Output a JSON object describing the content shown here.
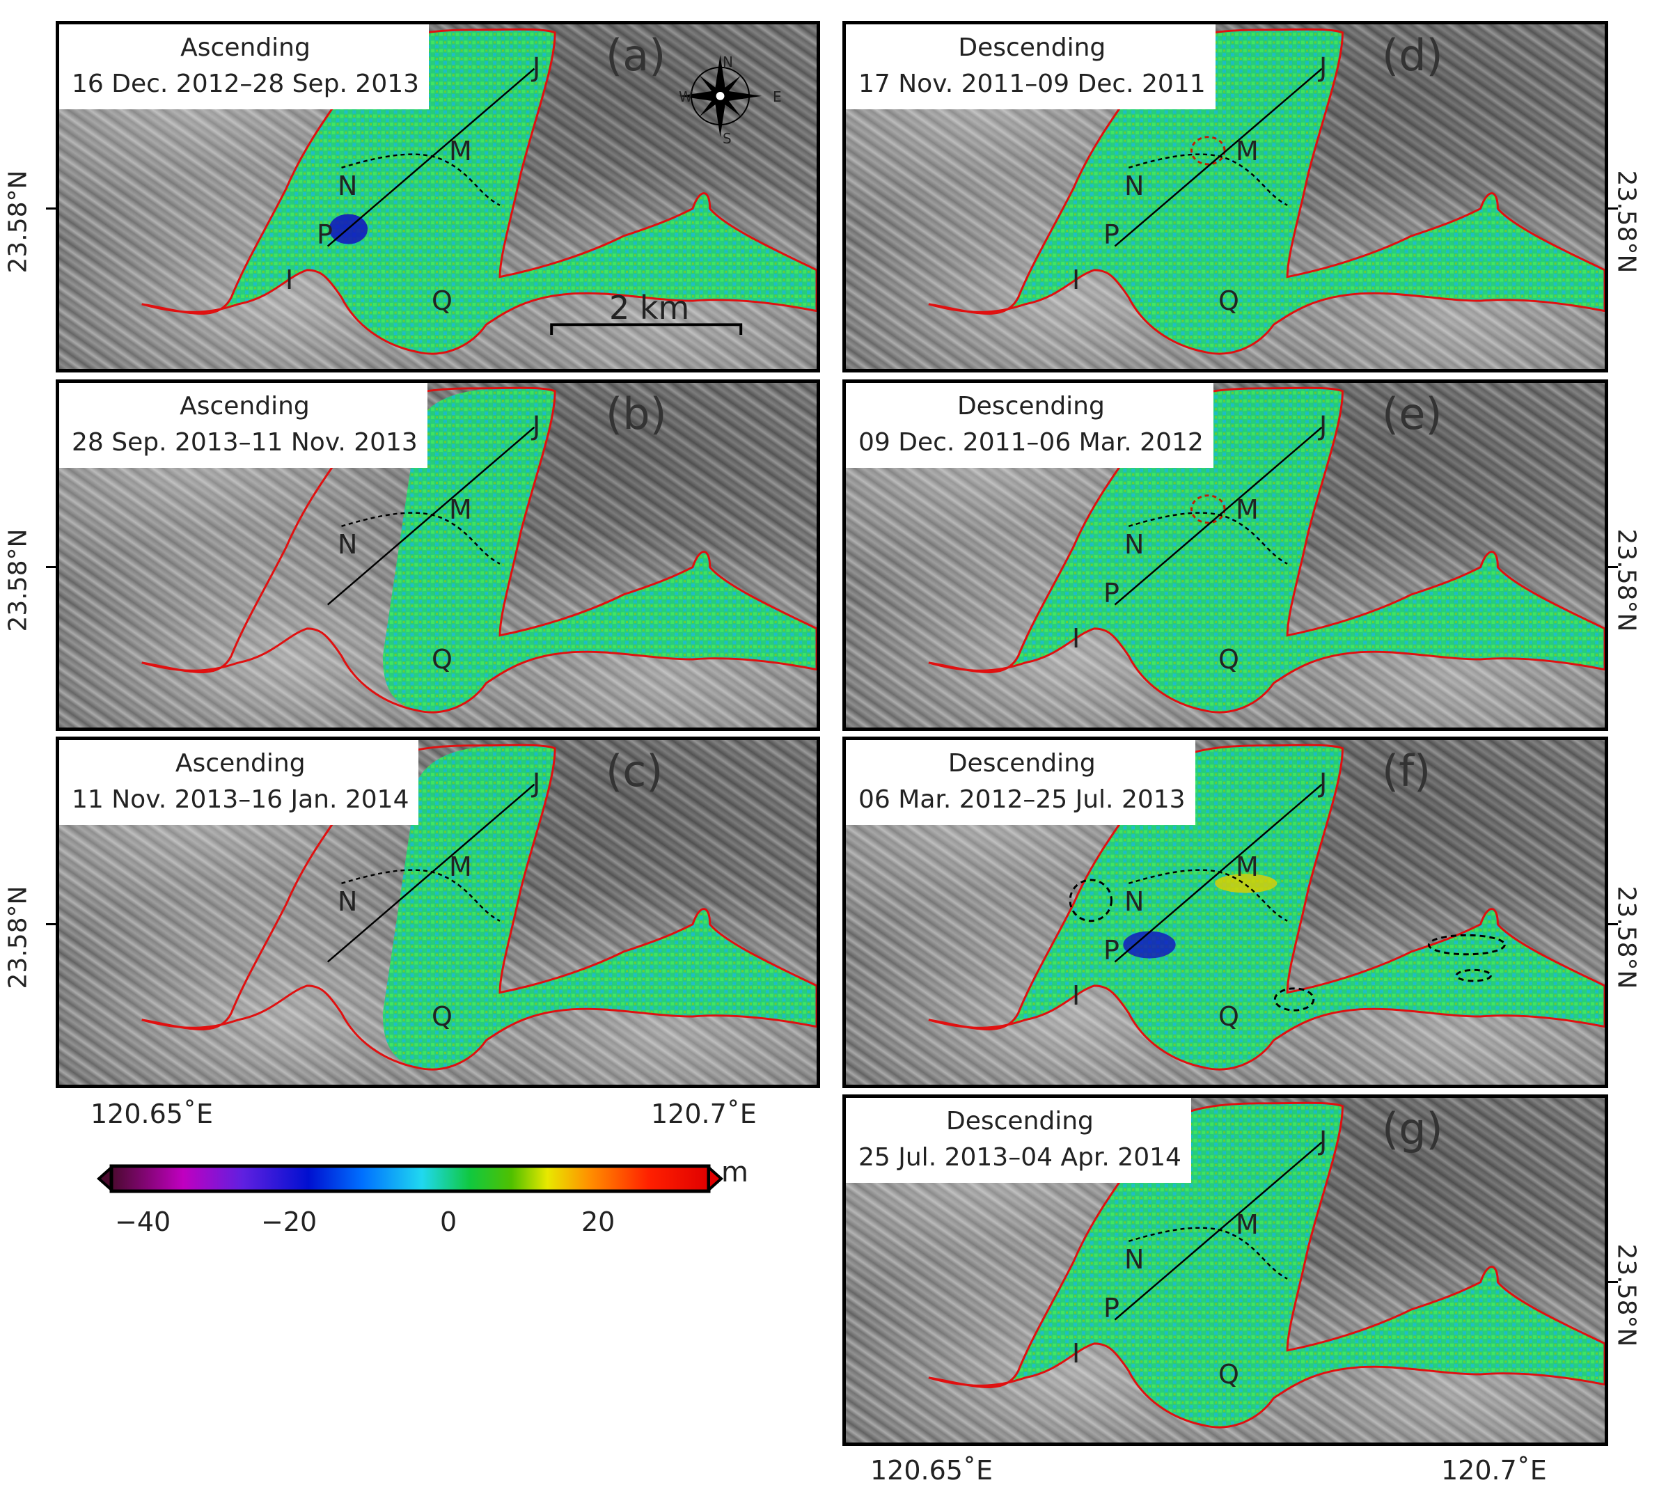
{
  "panels": [
    {
      "id": "a",
      "label": "(a)",
      "track": "Ascending",
      "dates": "16 Dec. 2012–28 Sep. 2013"
    },
    {
      "id": "b",
      "label": "(b)",
      "track": "Ascending",
      "dates": "28 Sep. 2013–11 Nov. 2013"
    },
    {
      "id": "c",
      "label": "(c)",
      "track": "Ascending",
      "dates": "11 Nov. 2013–16 Jan. 2014"
    },
    {
      "id": "d",
      "label": "(d)",
      "track": "Descending",
      "dates": "17 Nov. 2011–09 Dec. 2011"
    },
    {
      "id": "e",
      "label": "(e)",
      "track": "Descending",
      "dates": "09 Dec. 2011–06 Mar. 2012"
    },
    {
      "id": "f",
      "label": "(f)",
      "track": "Descending",
      "dates": "06 Mar. 2012–25 Jul. 2013"
    },
    {
      "id": "g",
      "label": "(g)",
      "track": "Descending",
      "dates": "25 Jul. 2013–04 Apr. 2014"
    }
  ],
  "points": {
    "J": "J",
    "M": "M",
    "N": "N",
    "P": "P",
    "I": "I",
    "Q": "Q"
  },
  "axes": {
    "lat": "23.58°N",
    "lon_left": "120.65˚E",
    "lon_right": "120.7˚E"
  },
  "scale_bar": {
    "label": "2 km"
  },
  "compass": {
    "n": "N",
    "s": "S",
    "e": "E",
    "w": "W"
  },
  "colorbar": {
    "unit": "m",
    "ticks": [
      "−40",
      "−20",
      "0",
      "20"
    ],
    "colors": [
      "#4a0a2e",
      "#c000c0",
      "#6020e0",
      "#0010d0",
      "#0060ff",
      "#20d0f0",
      "#10d040",
      "#40c000",
      "#e8e800",
      "#ff8000",
      "#ff2000",
      "#e00000"
    ]
  }
}
